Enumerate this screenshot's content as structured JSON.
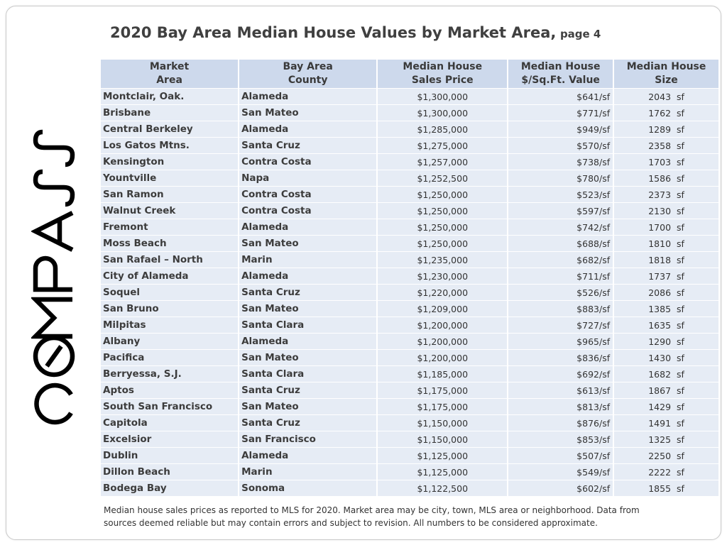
{
  "logo": {
    "text": "COMPASS"
  },
  "title": {
    "main": "2020 Bay Area Median House Values by Market Area,",
    "sub": "page 4"
  },
  "table": {
    "headers": [
      [
        "Market",
        "Area"
      ],
      [
        "Bay Area",
        "County"
      ],
      [
        "Median House",
        "Sales Price"
      ],
      [
        "Median House",
        "$/Sq.Ft. Value"
      ],
      [
        "Median House",
        "Size"
      ]
    ],
    "rows": [
      [
        "Montclair, Oak.",
        "Alameda",
        "$1,300,000",
        "$641/sf",
        "2043  sf"
      ],
      [
        "Brisbane",
        "San Mateo",
        "$1,300,000",
        "$771/sf",
        "1762  sf"
      ],
      [
        "Central Berkeley",
        "Alameda",
        "$1,285,000",
        "$949/sf",
        "1289  sf"
      ],
      [
        "Los Gatos Mtns.",
        "Santa Cruz",
        "$1,275,000",
        "$570/sf",
        "2358  sf"
      ],
      [
        "Kensington",
        "Contra Costa",
        "$1,257,000",
        "$738/sf",
        "1703  sf"
      ],
      [
        "Yountville",
        "Napa",
        "$1,252,500",
        "$780/sf",
        "1586  sf"
      ],
      [
        "San Ramon",
        "Contra Costa",
        "$1,250,000",
        "$523/sf",
        "2373  sf"
      ],
      [
        "Walnut Creek",
        "Contra Costa",
        "$1,250,000",
        "$597/sf",
        "2130  sf"
      ],
      [
        "Fremont",
        "Alameda",
        "$1,250,000",
        "$742/sf",
        "1700  sf"
      ],
      [
        "Moss Beach",
        "San Mateo",
        "$1,250,000",
        "$688/sf",
        "1810  sf"
      ],
      [
        "San Rafael – North",
        "Marin",
        "$1,235,000",
        "$682/sf",
        "1818  sf"
      ],
      [
        "City of Alameda",
        "Alameda",
        "$1,230,000",
        "$711/sf",
        "1737  sf"
      ],
      [
        "Soquel",
        "Santa Cruz",
        "$1,220,000",
        "$526/sf",
        "2086  sf"
      ],
      [
        "San Bruno",
        "San Mateo",
        "$1,209,000",
        "$883/sf",
        "1385  sf"
      ],
      [
        "Milpitas",
        "Santa Clara",
        "$1,200,000",
        "$727/sf",
        "1635  sf"
      ],
      [
        "Albany",
        "Alameda",
        "$1,200,000",
        "$965/sf",
        "1290  sf"
      ],
      [
        "Pacifica",
        "San Mateo",
        "$1,200,000",
        "$836/sf",
        "1430  sf"
      ],
      [
        "Berryessa, S.J.",
        "Santa Clara",
        "$1,185,000",
        "$692/sf",
        "1682  sf"
      ],
      [
        "Aptos",
        "Santa Cruz",
        "$1,175,000",
        "$613/sf",
        "1867  sf"
      ],
      [
        "South San Francisco",
        "San Mateo",
        "$1,175,000",
        "$813/sf",
        "1429  sf"
      ],
      [
        "Capitola",
        "Santa Cruz",
        "$1,150,000",
        "$876/sf",
        "1491  sf"
      ],
      [
        "Excelsior",
        "San Francisco",
        "$1,150,000",
        "$853/sf",
        "1325  sf"
      ],
      [
        "Dublin",
        "Alameda",
        "$1,125,000",
        "$507/sf",
        "2250  sf"
      ],
      [
        "Dillon Beach",
        "Marin",
        "$1,125,000",
        "$549/sf",
        "2222  sf"
      ],
      [
        "Bodega Bay",
        "Sonoma",
        "$1,122,500",
        "$602/sf",
        "1855  sf"
      ]
    ]
  },
  "footnote": {
    "line1": "Median house sales prices as  reported to MLS for 2020.  Market area may be city, town, MLS area or neighborhood. Data from",
    "line2": "sources deemed reliable but may contain errors and subject to revision. All numbers to be considered approximate."
  },
  "colors": {
    "header_bg": "#cdd9ec",
    "row_bg": "#e6ecf5",
    "title": "#404040"
  }
}
